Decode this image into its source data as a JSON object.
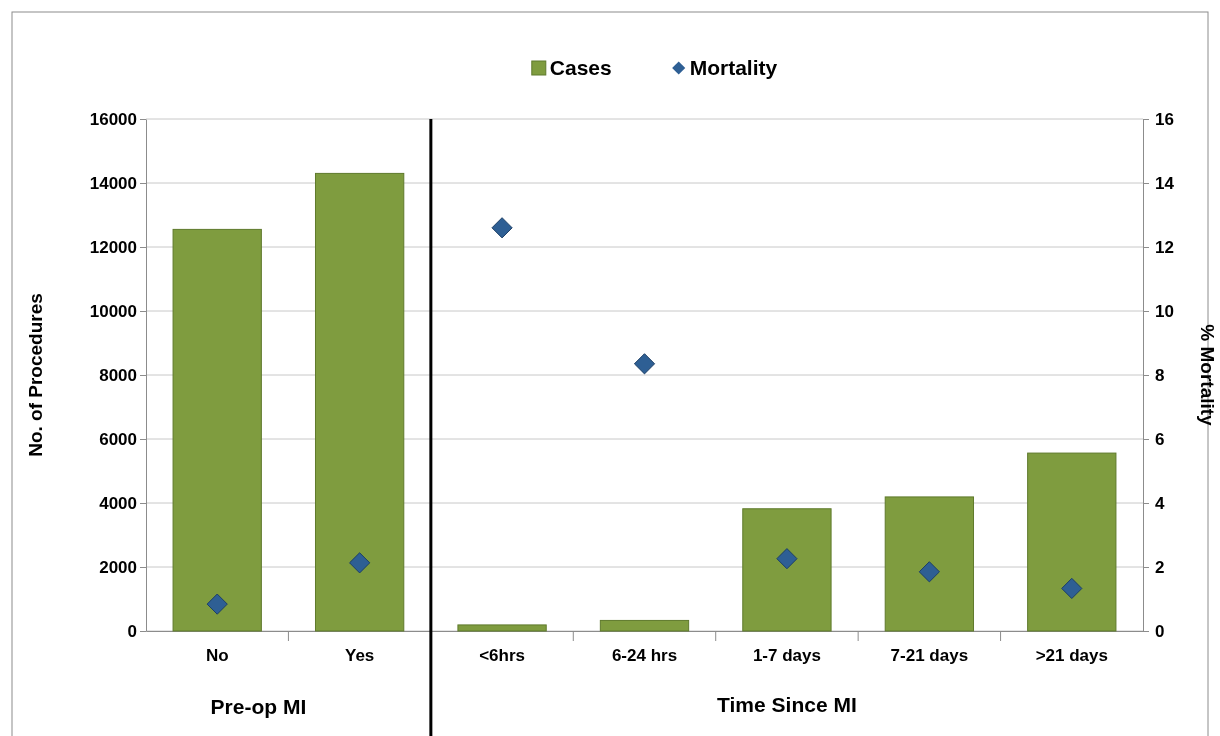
{
  "chart_data": {
    "type": "bar",
    "categories": [
      "No",
      "Yes",
      "<6hrs",
      "6-24 hrs",
      "1-7 days",
      "7-21 days",
      ">21 days"
    ],
    "series": [
      {
        "name": "Cases",
        "type": "bar",
        "color": "#7f9c3f",
        "values": [
          12550,
          14300,
          190,
          330,
          3820,
          4190,
          5560
        ]
      },
      {
        "name": "Mortality",
        "type": "scatter",
        "axis": "y2",
        "marker": "diamond",
        "color": "#2e5f94",
        "values": [
          0.84,
          2.13,
          12.6,
          8.35,
          2.26,
          1.85,
          1.33
        ]
      }
    ],
    "xlabel": "Time Since MI",
    "ylabel": "No. of Procedures",
    "y2label": "% Mortality",
    "annotations": [
      "Pre-op MI"
    ],
    "ylim": [
      0,
      16000
    ],
    "yticks": [
      0,
      2000,
      4000,
      6000,
      8000,
      10000,
      12000,
      14000,
      16000
    ],
    "y2lim": [
      0,
      16
    ],
    "y2ticks": [
      0,
      2,
      4,
      6,
      8,
      10,
      12,
      14,
      16
    ],
    "ref_lines": [
      {
        "axis": "x",
        "value": "Yes",
        "color": "#000000"
      }
    ],
    "grid": "y",
    "legend": "top"
  }
}
